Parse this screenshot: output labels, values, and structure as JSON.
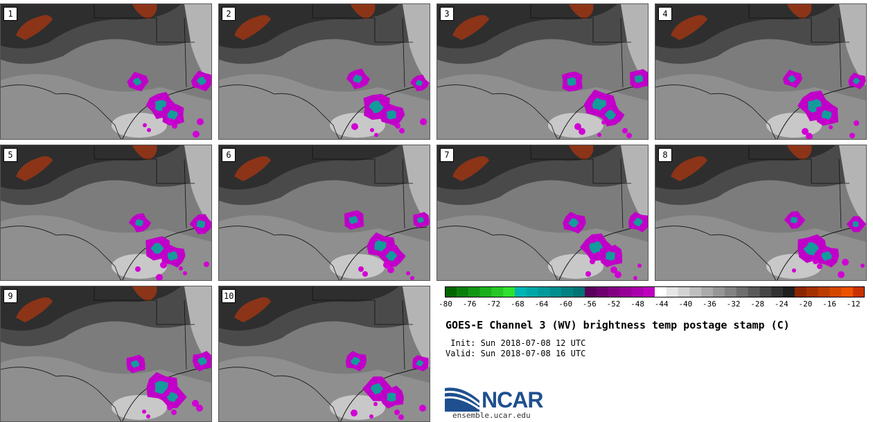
{
  "panels": [
    {
      "label": "1",
      "variant": 1
    },
    {
      "label": "2",
      "variant": 2
    },
    {
      "label": "3",
      "variant": 3
    },
    {
      "label": "4",
      "variant": 4
    },
    {
      "label": "5",
      "variant": 5
    },
    {
      "label": "6",
      "variant": 6
    },
    {
      "label": "7",
      "variant": 7
    },
    {
      "label": "8",
      "variant": 8
    },
    {
      "label": "9",
      "variant": 9
    },
    {
      "label": "10",
      "variant": 10
    }
  ],
  "colorbar": {
    "ticks": [
      "-80",
      "-76",
      "-72",
      "-68",
      "-64",
      "-60",
      "-56",
      "-52",
      "-48",
      "-44",
      "-40",
      "-36",
      "-32",
      "-28",
      "-24",
      "-20",
      "-16",
      "-12"
    ],
    "colors": [
      "#006400",
      "#0a7d0a",
      "#139613",
      "#1caf1c",
      "#25c825",
      "#2ee12e",
      "#00b4b4",
      "#00a7a7",
      "#009a9a",
      "#008d8d",
      "#008080",
      "#007373",
      "#5a005a",
      "#6e006e",
      "#820082",
      "#960096",
      "#aa00aa",
      "#be00be",
      "#ffffff",
      "#e6e6e6",
      "#d2d2d2",
      "#bebebe",
      "#aaaaaa",
      "#969696",
      "#828282",
      "#6e6e6e",
      "#5a5a5a",
      "#464646",
      "#323232",
      "#1e1e1e",
      "#8b2500",
      "#a33000",
      "#bb3b00",
      "#d34600",
      "#eb5100",
      "#c83200"
    ]
  },
  "title": "GOES-E Channel 3 (WV) brightness temp postage stamp (C)",
  "init": " Init: Sun 2018-07-08 12 UTC",
  "valid": "Valid: Sun 2018-07-08 16 UTC",
  "logo": {
    "text": "NCAR",
    "url": "ensemble.ucar.edu"
  }
}
